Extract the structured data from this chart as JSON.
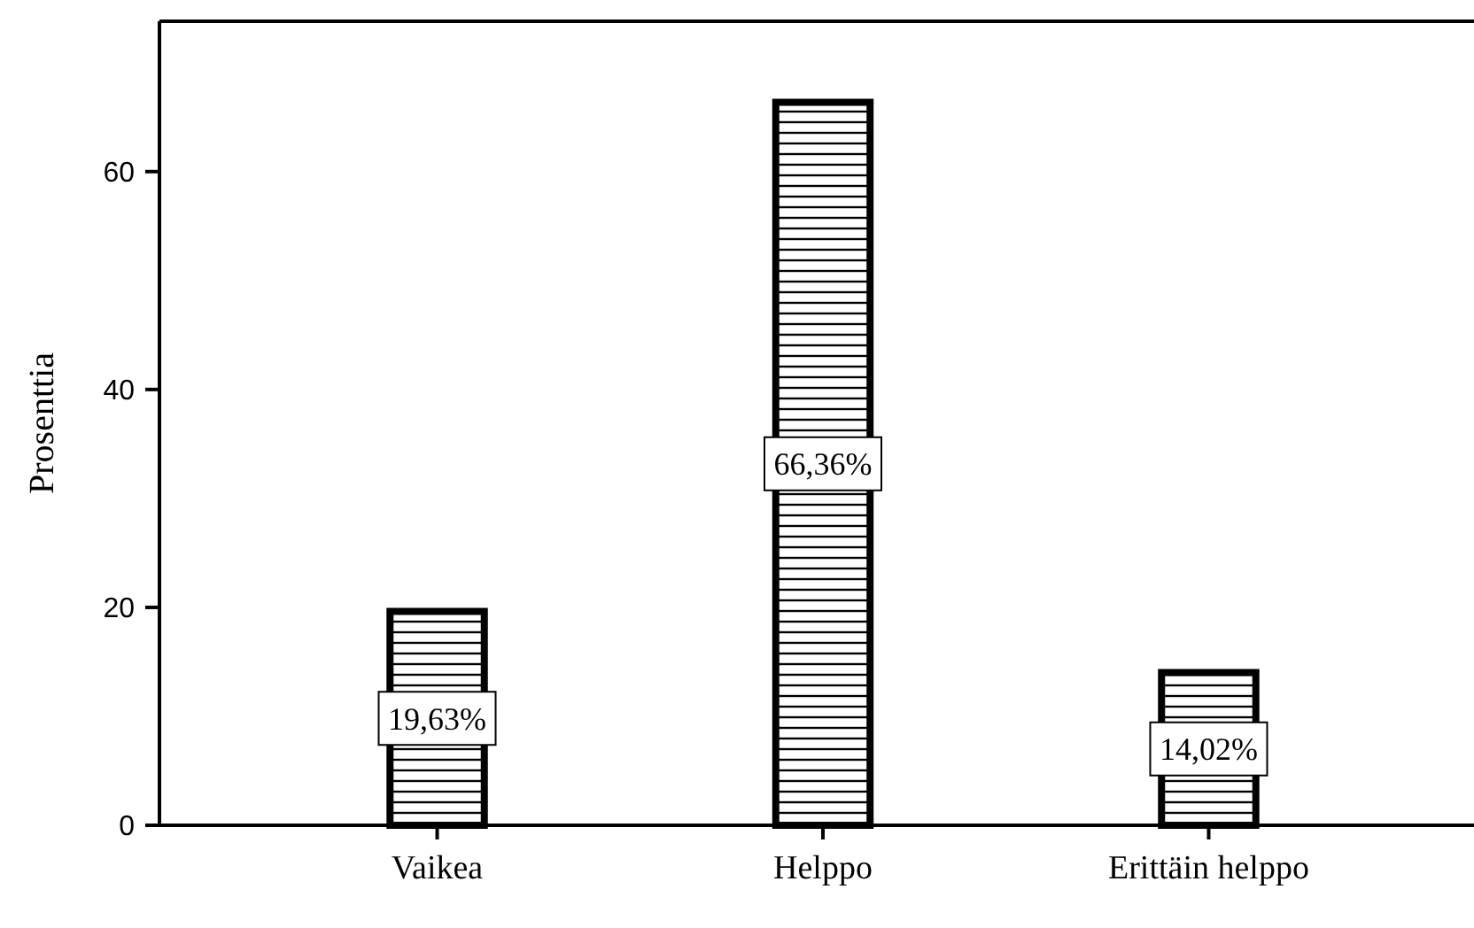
{
  "chart_data": {
    "type": "bar",
    "ylabel": "Prosenttia",
    "categories": [
      "Vaikea",
      "Helppo",
      "Erittäin helppo"
    ],
    "values": [
      19.63,
      66.36,
      14.02
    ],
    "value_labels": [
      "19,63%",
      "66,36%",
      "14,02%"
    ],
    "color": "#000000",
    "ylim": [
      0,
      73.8
    ],
    "yticks": [
      0,
      20,
      40,
      60
    ],
    "grid": false
  }
}
